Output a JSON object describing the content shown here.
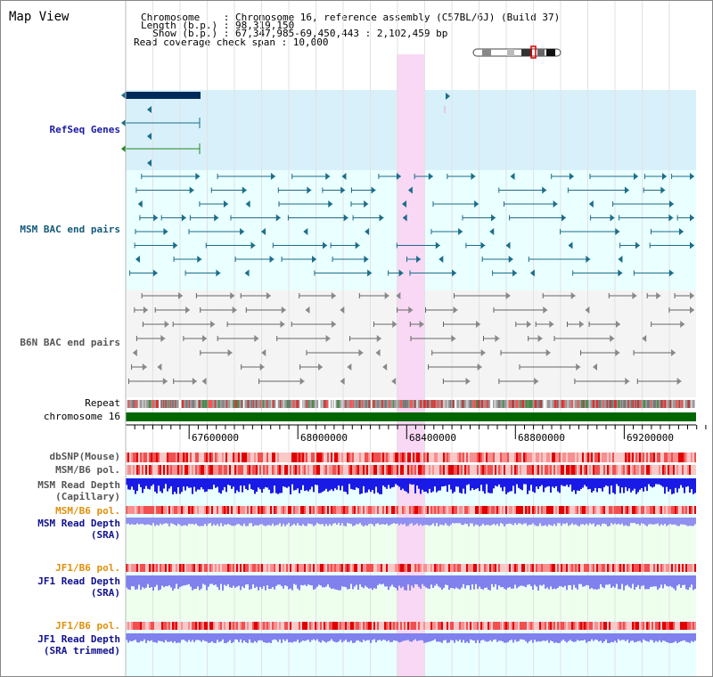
{
  "view": {
    "title": "Map View"
  },
  "header": {
    "lines": [
      "Chromosome    : Chromosome 16, reference assembly (C57BL/6J) (Build 37)",
      "Length (b.p.) : 98,319,150",
      "  Show (b.p.) : 67,347,985-69,450,443 : 2,102,459 bp",
      "Read coverage check span : 10,000"
    ]
  },
  "tracks": {
    "refseq": "RefSeq Genes",
    "msm_bac": "MSM BAC end pairs",
    "b6n_bac": "B6N BAC end pairs",
    "repeat": "Repeat",
    "chromosome": "chromosome 16",
    "dbsnp": "dbSNP(Mouse)",
    "msm_b6_pol_1": "MSM/B6 pol.",
    "msm_depth_cap_1": "MSM Read Depth",
    "msm_depth_cap_2": "(Capillary)",
    "msm_b6_pol_2": "MSM/B6 pol.",
    "msm_depth_sra_1": "MSM Read Depth",
    "msm_depth_sra_2": "(SRA)",
    "jf1_b6_pol_1": "JF1/B6 pol.",
    "jf1_depth_sra_1": "JF1 Read Depth",
    "jf1_depth_sra_2": "(SRA)",
    "jf1_b6_pol_2": "JF1/B6 pol.",
    "jf1_depth_trim_1": "JF1 Read Depth",
    "jf1_depth_trim_2": "(SRA trimmed)"
  },
  "axis": {
    "ticks": [
      "67600000",
      "68000000",
      "68400000",
      "68800000",
      "69200000"
    ]
  },
  "colors": {
    "refseq_bg": "#d8f0fa",
    "light_bg": "#eaffff",
    "highlight": "#f8d8f4",
    "chromosome": "#006600",
    "gene_dark": "#002a5a",
    "msm_feature": "#1a6e8a",
    "b6n_feature": "#555555",
    "depth_cap": "#1a1ae6",
    "depth_sra": "#9090f0"
  }
}
